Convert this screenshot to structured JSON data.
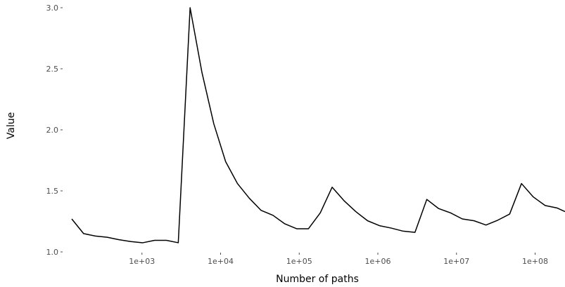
{
  "chart_data": {
    "type": "line",
    "xlabel": "Number of paths",
    "ylabel": "Value",
    "x_scale": "log10",
    "xlim": [
      100,
      240000000
    ],
    "ylim": [
      1.0,
      3.0
    ],
    "x_ticks": [
      {
        "value": 1000,
        "label": "1e+03"
      },
      {
        "value": 10000,
        "label": "1e+04"
      },
      {
        "value": 100000,
        "label": "1e+05"
      },
      {
        "value": 1000000,
        "label": "1e+06"
      },
      {
        "value": 10000000,
        "label": "1e+07"
      },
      {
        "value": 100000000,
        "label": "1e+08"
      }
    ],
    "y_ticks": [
      {
        "value": 1.0,
        "label": "1.0"
      },
      {
        "value": 1.5,
        "label": "1.5"
      },
      {
        "value": 2.0,
        "label": "2.0"
      },
      {
        "value": 2.5,
        "label": "2.5"
      },
      {
        "value": 3.0,
        "label": "3.0"
      }
    ],
    "grid": false,
    "line_color": "#000000",
    "series": [
      {
        "x": [
          128,
          181,
          256,
          362,
          512,
          724,
          1024,
          1448,
          2048,
          2896,
          4096,
          5793,
          8192,
          11585,
          16384,
          23170,
          32768,
          46341,
          65536,
          92682,
          131072,
          185364,
          262144,
          370728,
          524288,
          741455,
          1048576,
          1482910,
          2097152,
          2965821,
          4194304,
          5931642,
          8388608,
          11863283,
          16777216,
          23726566,
          33554432,
          47453133,
          67108864,
          94906266,
          134217728,
          189812531,
          240000000
        ],
        "y": [
          1.27,
          1.15,
          1.13,
          1.12,
          1.1,
          1.085,
          1.075,
          1.095,
          1.095,
          1.075,
          3.0,
          2.47,
          2.05,
          1.74,
          1.56,
          1.44,
          1.34,
          1.3,
          1.23,
          1.19,
          1.19,
          1.32,
          1.53,
          1.42,
          1.33,
          1.255,
          1.215,
          1.195,
          1.17,
          1.16,
          1.43,
          1.355,
          1.32,
          1.27,
          1.255,
          1.22,
          1.26,
          1.31,
          1.56,
          1.45,
          1.38,
          1.36,
          1.33
        ]
      }
    ]
  }
}
